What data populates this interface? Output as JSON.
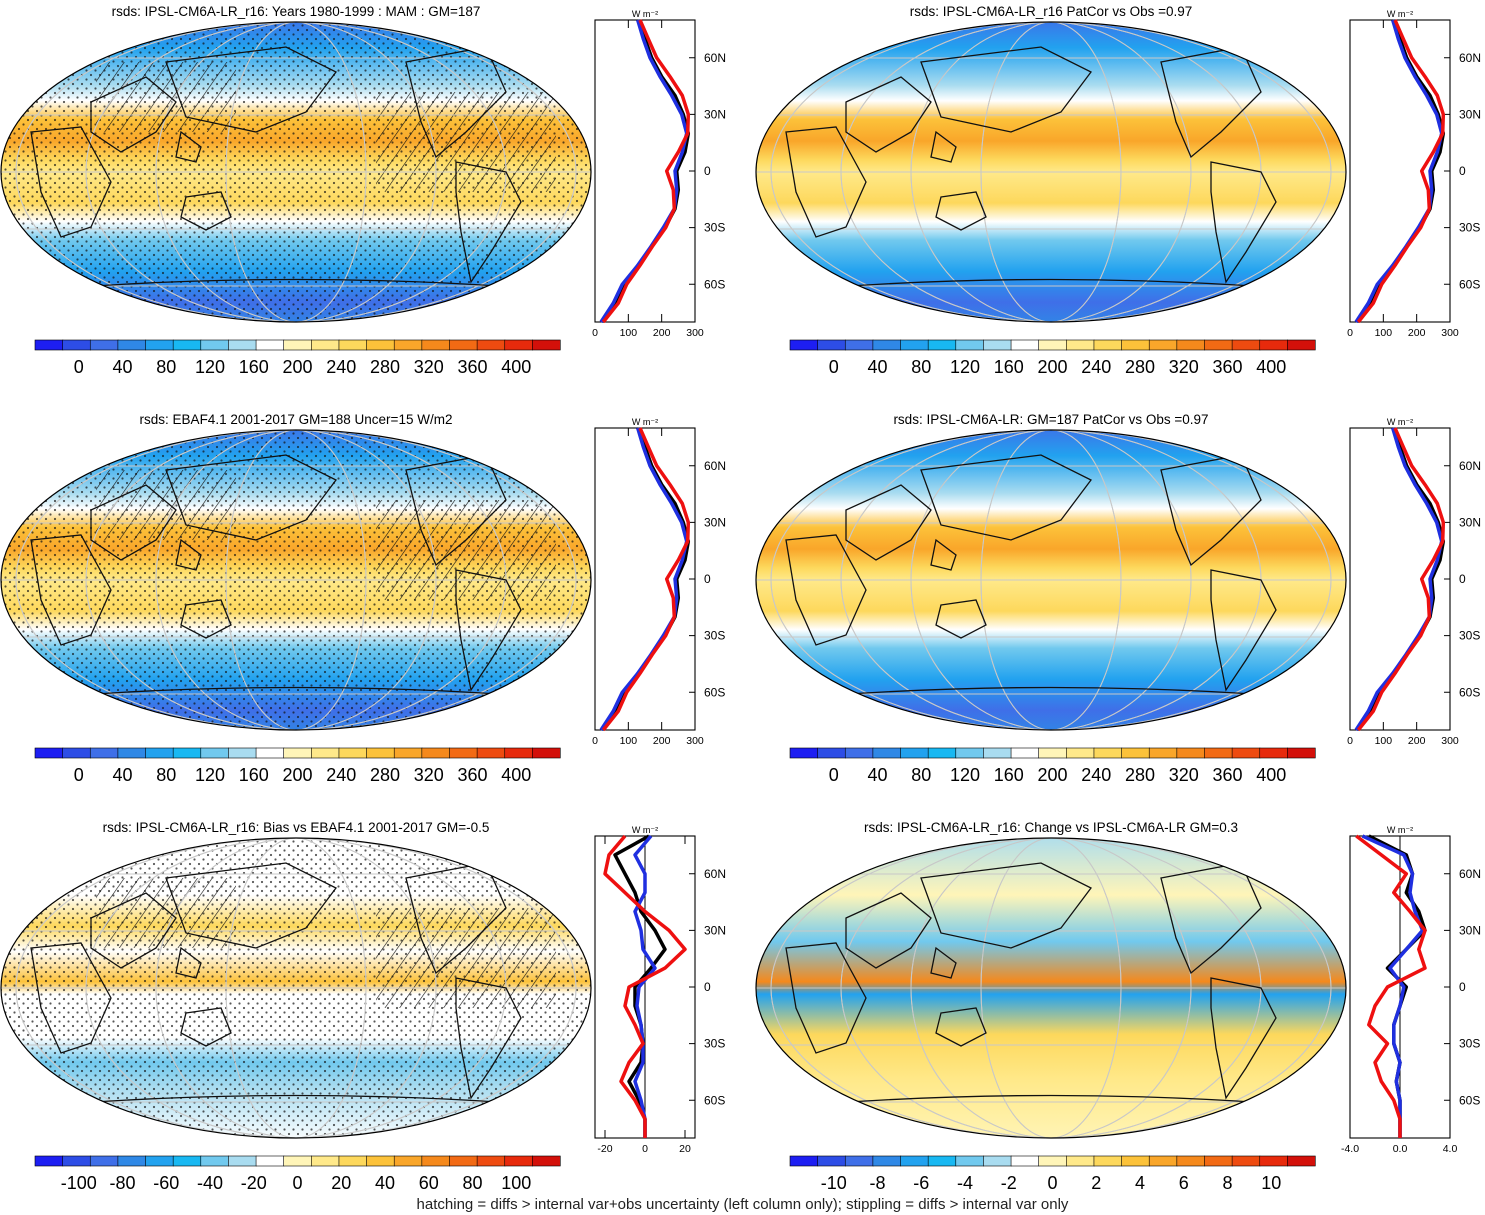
{
  "palette": [
    "#1d1ef2",
    "#2d4de6",
    "#3f6fe8",
    "#2f88e6",
    "#22a2ef",
    "#18b8f2",
    "#71c9ee",
    "#a9dcf0",
    "#ffffff",
    "#fff5b8",
    "#ffe98a",
    "#fdd85c",
    "#fcc23a",
    "#f9a62a",
    "#f5891c",
    "#f26a14",
    "#ee4b10",
    "#e72a0c",
    "#d3100a"
  ],
  "chart_data": [
    {
      "type": "heatmap",
      "title": "rsds: IPSL-CM6A-LR_r16: Years 1980-1999 : MAM : GM=187",
      "colorbar": [
        "0",
        "40",
        "80",
        "120",
        "160",
        "200",
        "240",
        "280",
        "320",
        "360",
        "400"
      ],
      "profile": {
        "xticks": [
          "0",
          "100",
          "200",
          "300"
        ],
        "xlim": [
          0,
          300
        ],
        "unit": "W m-2",
        "yticks": [
          "60N",
          "30N",
          "0",
          "30S",
          "60S"
        ],
        "lat": [
          80,
          70,
          60,
          50,
          40,
          30,
          20,
          10,
          0,
          -10,
          -20,
          -30,
          -40,
          -50,
          -60,
          -70,
          -80
        ],
        "series": [
          {
            "color": "#000000",
            "values": [
              130,
              150,
              170,
              200,
              240,
              265,
              280,
              270,
              245,
              250,
              240,
              210,
              170,
              130,
              85,
              60,
              20
            ]
          },
          {
            "color": "#1f2fe0",
            "values": [
              128,
              145,
              165,
              195,
              230,
              260,
              275,
              262,
              240,
              245,
              238,
              205,
              168,
              128,
              82,
              55,
              18
            ]
          },
          {
            "color": "#ee1010",
            "values": [
              135,
              160,
              185,
              225,
              262,
              280,
              278,
              250,
              215,
              235,
              238,
              212,
              172,
              135,
              95,
              70,
              25
            ]
          }
        ]
      }
    },
    {
      "type": "heatmap",
      "title": "rsds: IPSL-CM6A-LR_r16 PatCor vs Obs =0.97",
      "colorbar": [
        "0",
        "40",
        "80",
        "120",
        "160",
        "200",
        "240",
        "280",
        "320",
        "360",
        "400"
      ],
      "profile": {
        "xticks": [
          "0",
          "100",
          "200",
          "300"
        ],
        "xlim": [
          0,
          300
        ],
        "unit": "W m-2",
        "yticks": [
          "60N",
          "30N",
          "0",
          "30S",
          "60S"
        ],
        "lat": [
          80,
          70,
          60,
          50,
          40,
          30,
          20,
          10,
          0,
          -10,
          -20,
          -30,
          -40,
          -50,
          -60,
          -70,
          -80
        ],
        "series": [
          {
            "color": "#000000",
            "values": [
              130,
              150,
              170,
              200,
              240,
              265,
              280,
              270,
              245,
              250,
              240,
              210,
              170,
              130,
              85,
              60,
              20
            ]
          },
          {
            "color": "#1f2fe0",
            "values": [
              128,
              145,
              165,
              195,
              230,
              260,
              275,
              262,
              240,
              245,
              238,
              205,
              168,
              128,
              82,
              55,
              18
            ]
          },
          {
            "color": "#ee1010",
            "values": [
              135,
              160,
              185,
              225,
              262,
              280,
              278,
              250,
              215,
              235,
              238,
              212,
              172,
              135,
              95,
              70,
              25
            ]
          }
        ]
      }
    },
    {
      "type": "heatmap",
      "title": "rsds: EBAF4.1 2001-2017 GM=188 Uncer=15 W/m2",
      "colorbar": [
        "0",
        "40",
        "80",
        "120",
        "160",
        "200",
        "240",
        "280",
        "320",
        "360",
        "400"
      ],
      "profile": {
        "xticks": [
          "0",
          "100",
          "200",
          "300"
        ],
        "xlim": [
          0,
          300
        ],
        "unit": "W m-2",
        "yticks": [
          "60N",
          "30N",
          "0",
          "30S",
          "60S"
        ],
        "lat": [
          80,
          70,
          60,
          50,
          40,
          30,
          20,
          10,
          0,
          -10,
          -20,
          -30,
          -40,
          -50,
          -60,
          -70,
          -80
        ],
        "series": [
          {
            "color": "#000000",
            "values": [
              130,
              150,
              170,
              200,
              240,
              265,
              280,
              270,
              245,
              250,
              240,
              210,
              170,
              130,
              85,
              60,
              20
            ]
          },
          {
            "color": "#1f2fe0",
            "values": [
              128,
              145,
              165,
              195,
              230,
              260,
              275,
              262,
              240,
              245,
              238,
              205,
              168,
              128,
              82,
              55,
              18
            ]
          },
          {
            "color": "#ee1010",
            "values": [
              135,
              160,
              185,
              225,
              262,
              280,
              278,
              250,
              215,
              235,
              238,
              212,
              172,
              135,
              95,
              70,
              25
            ]
          }
        ]
      }
    },
    {
      "type": "heatmap",
      "title": "rsds: IPSL-CM6A-LR: GM=187 PatCor vs Obs =0.97",
      "colorbar": [
        "0",
        "40",
        "80",
        "120",
        "160",
        "200",
        "240",
        "280",
        "320",
        "360",
        "400"
      ],
      "profile": {
        "xticks": [
          "0",
          "100",
          "200",
          "300"
        ],
        "xlim": [
          0,
          300
        ],
        "unit": "W m-2",
        "yticks": [
          "60N",
          "30N",
          "0",
          "30S",
          "60S"
        ],
        "lat": [
          80,
          70,
          60,
          50,
          40,
          30,
          20,
          10,
          0,
          -10,
          -20,
          -30,
          -40,
          -50,
          -60,
          -70,
          -80
        ],
        "series": [
          {
            "color": "#000000",
            "values": [
              130,
              150,
              170,
              200,
              240,
              265,
              280,
              270,
              245,
              250,
              240,
              210,
              170,
              130,
              85,
              60,
              20
            ]
          },
          {
            "color": "#1f2fe0",
            "values": [
              128,
              145,
              165,
              195,
              230,
              260,
              275,
              262,
              240,
              245,
              238,
              205,
              168,
              128,
              82,
              55,
              18
            ]
          },
          {
            "color": "#ee1010",
            "values": [
              135,
              160,
              185,
              225,
              262,
              280,
              278,
              250,
              215,
              235,
              238,
              212,
              172,
              135,
              95,
              70,
              25
            ]
          }
        ]
      }
    },
    {
      "type": "heatmap",
      "title": "rsds: IPSL-CM6A-LR_r16: Bias vs EBAF4.1 2001-2017 GM=-0.5",
      "colorbar": [
        "-100",
        "-80",
        "-60",
        "-40",
        "-20",
        "0",
        "20",
        "40",
        "60",
        "80",
        "100"
      ],
      "profile": {
        "xticks": [
          "-20",
          "0",
          "20"
        ],
        "xlim": [
          -25,
          25
        ],
        "unit": "W m-2",
        "yticks": [
          "60N",
          "30N",
          "0",
          "30S",
          "60S"
        ],
        "lat": [
          80,
          70,
          60,
          50,
          40,
          30,
          20,
          10,
          0,
          -10,
          -20,
          -30,
          -40,
          -50,
          -60,
          -70,
          -80
        ],
        "series": [
          {
            "color": "#000000",
            "values": [
              2,
              -15,
              -10,
              -5,
              -2,
              5,
              10,
              3,
              -5,
              -5,
              -2,
              -1,
              -2,
              -8,
              -3,
              0,
              0
            ]
          },
          {
            "color": "#1f2fe0",
            "values": [
              3,
              -5,
              0,
              0,
              -5,
              -2,
              -1,
              5,
              -3,
              -4,
              -2,
              -1,
              -1,
              -5,
              -2,
              0,
              0
            ]
          },
          {
            "color": "#ee1010",
            "values": [
              -10,
              -18,
              -20,
              -10,
              0,
              12,
              20,
              10,
              -8,
              -10,
              -5,
              -1,
              -8,
              -12,
              -5,
              0,
              0
            ]
          }
        ]
      }
    },
    {
      "type": "heatmap",
      "title": "rsds: IPSL-CM6A-LR_r16: Change vs IPSL-CM6A-LR GM=0.3",
      "colorbar": [
        "-10",
        "-8",
        "-6",
        "-4",
        "-2",
        "0",
        "2",
        "4",
        "6",
        "8",
        "10"
      ],
      "profile": {
        "xticks": [
          "-4.0",
          "0.0",
          "4.0"
        ],
        "xlim": [
          -4,
          4
        ],
        "unit": "W m-2",
        "yticks": [
          "60N",
          "30N",
          "0",
          "30S",
          "60S"
        ],
        "lat": [
          80,
          70,
          60,
          50,
          40,
          30,
          20,
          10,
          0,
          -10,
          -20,
          -30,
          -40,
          -50,
          -60,
          -70,
          -80
        ],
        "series": [
          {
            "color": "#000000",
            "values": [
              -2.5,
              0.5,
              1,
              0.5,
              1.5,
              2,
              0.5,
              -1,
              0.5,
              0,
              -0.5,
              -0.5,
              0,
              -0.3,
              0,
              0,
              0
            ]
          },
          {
            "color": "#1f2fe0",
            "values": [
              -3,
              0.3,
              1,
              0.8,
              1.2,
              1.8,
              0.5,
              -0.8,
              0.3,
              0,
              -0.5,
              -0.5,
              0,
              -0.3,
              0,
              0,
              0
            ]
          },
          {
            "color": "#ee1010",
            "values": [
              -3.5,
              -1.5,
              0.5,
              -0.5,
              0.8,
              2,
              1.5,
              2,
              -1,
              -2,
              -2.5,
              -1,
              -2,
              -1.5,
              -0.5,
              0,
              0
            ]
          }
        ]
      }
    }
  ],
  "footnote": "hatching = diffs > internal var+obs uncertainty (left column only); stippling = diffs > internal var only"
}
